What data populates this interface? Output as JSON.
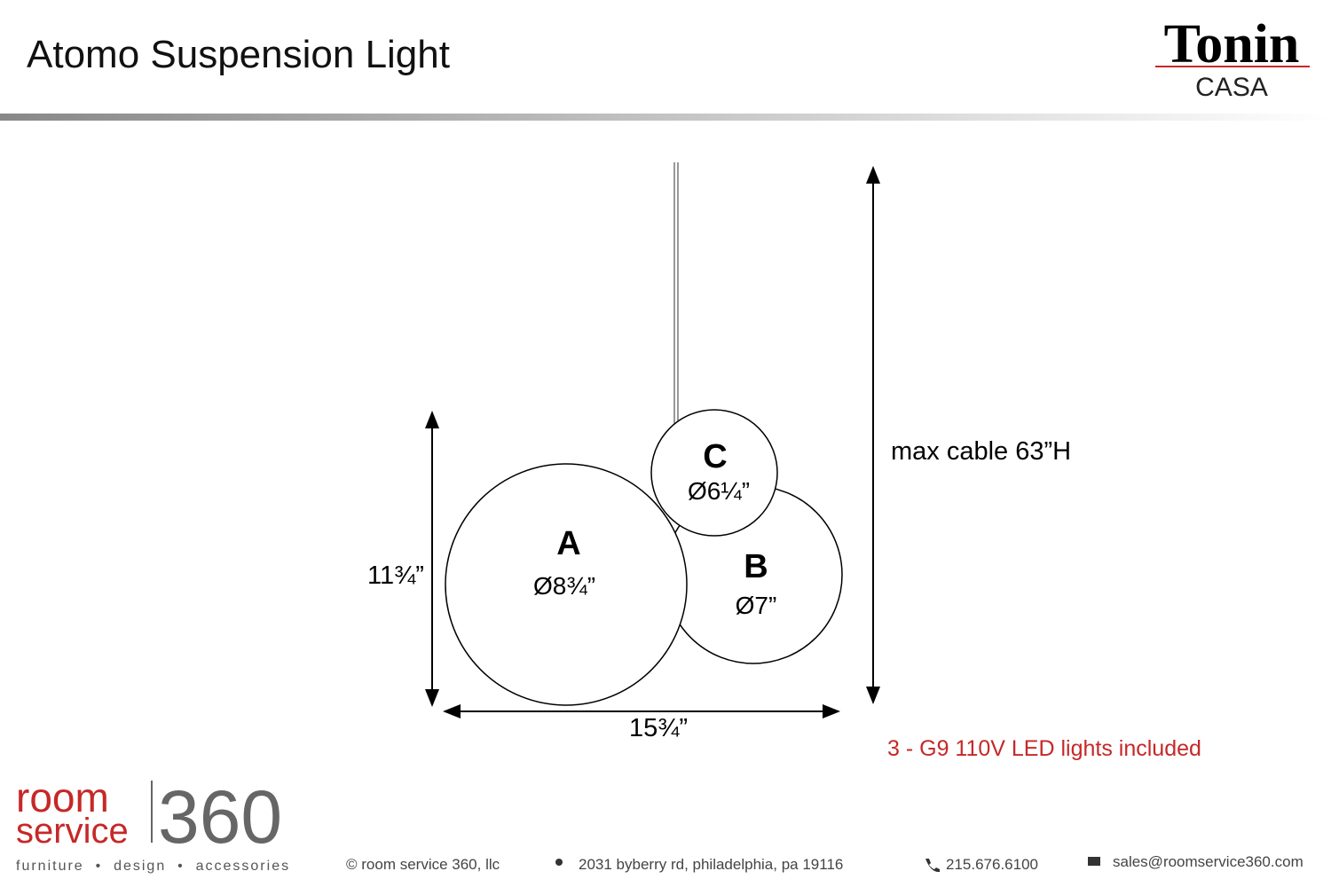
{
  "header": {
    "title": "Atomo Suspension Light",
    "brand": "Tonin",
    "brand_sub": "CASA"
  },
  "diagram": {
    "spheres": [
      {
        "letter": "A",
        "diameter": "Ø8¾”"
      },
      {
        "letter": "B",
        "diameter": "Ø7”"
      },
      {
        "letter": "C",
        "diameter": "Ø6¼”"
      }
    ],
    "height": "11¾”",
    "width": "15¾”",
    "cable": "max cable 63”H",
    "note": "3 - G9 110V LED lights included"
  },
  "footer": {
    "logo_room": "room",
    "logo_service": "service",
    "logo_360": "360",
    "tagline": "furniture  •  design  •  accessories",
    "copyright": "© room service 360, llc",
    "address": "2031 byberry rd, philadelphia, pa 19116",
    "phone": "215.676.6100",
    "email": "sales@roomservice360.com"
  }
}
